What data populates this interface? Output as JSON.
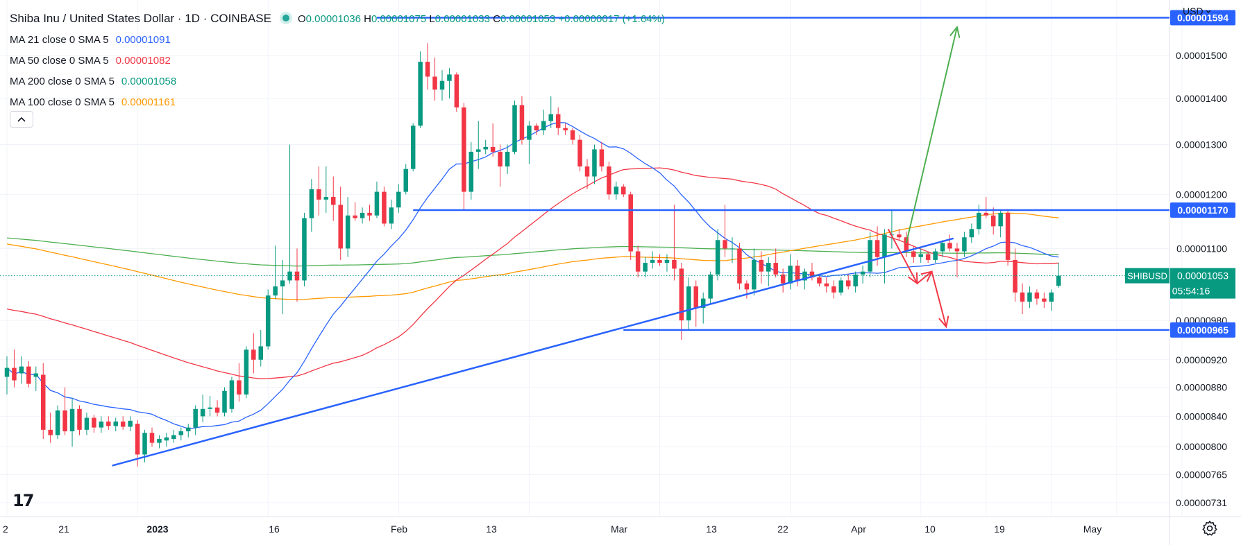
{
  "header": {
    "title": "Shiba Inu / United States Dollar · 1D · COINBASE",
    "ohlc": {
      "o_label": "O",
      "o": "0.00001036",
      "h_label": "H",
      "h": "0.00001075",
      "l_label": "L",
      "l": "0.00001033",
      "c_label": "C",
      "c": "0.00001053",
      "change": "+0.00000017 (+1.64%)"
    },
    "currency": "USD",
    "status_color": "#26a69a"
  },
  "indicators": [
    {
      "name": "MA 21 close 0 SMA 5",
      "value": "0.00001091",
      "color": "#2962ff"
    },
    {
      "name": "MA 50 close 0 SMA 5",
      "value": "0.00001082",
      "color": "#f23645"
    },
    {
      "name": "MA 200 close 0 SMA 5",
      "value": "0.00001058",
      "color": "#089981"
    },
    {
      "name": "MA 100 close 0 SMA 5",
      "value": "0.00001161",
      "color": "#ff9800"
    }
  ],
  "logo": "17",
  "icons": {
    "collapse": "chevron-up-icon",
    "settings": "gear-icon",
    "currency_menu": "chevron-down-icon"
  },
  "chart_data": {
    "type": "candlestick",
    "symbol": "SHIBUSD",
    "x_ticks": [
      "2",
      "21",
      "2023",
      "16",
      "Feb",
      "13",
      "Mar",
      "13",
      "22",
      "Apr",
      "10",
      "19",
      "May"
    ],
    "y_ticks": [
      1.5e-05,
      1.4e-05,
      1.3e-05,
      1.2e-05,
      1.1e-05,
      9.8e-06,
      9.2e-06,
      8.8e-06,
      8.4e-06,
      8e-06,
      7.65e-06,
      7.31e-06
    ],
    "y_tick_labels": [
      "0.00001500",
      "0.00001400",
      "0.00001300",
      "0.00001200",
      "0.00001100",
      "0.00000980",
      "0.00000920",
      "0.00000880",
      "0.00000840",
      "0.00000800",
      "0.00000765",
      "0.00000731"
    ],
    "ylim": [
      7.15e-06,
      1.64e-05
    ],
    "y_scale": "log",
    "current_price": {
      "symbol": "SHIBUSD",
      "value": "0.00001053",
      "countdown": "05:54:16",
      "color": "#089981"
    },
    "levels": [
      {
        "label": "0.00001594",
        "value": 1.594e-05
      },
      {
        "label": "0.00001170",
        "value": 1.17e-05
      },
      {
        "label": "0.00000965",
        "value": 9.65e-06
      }
    ],
    "colors": {
      "up": "#089981",
      "down": "#f23645",
      "level": "#2962ff",
      "ma21": "#2962ff",
      "ma50": "#f23645",
      "ma100": "#ff9800",
      "ma200": "#4caf50",
      "arrow_up": "#4caf50",
      "arrow_down": "#f23645"
    },
    "candles": [
      {
        "o": 8.95e-06,
        "h": 9.25e-06,
        "l": 8.7e-06,
        "c": 9.08e-06
      },
      {
        "o": 9.08e-06,
        "h": 9.35e-06,
        "l": 8.8e-06,
        "c": 8.9e-06
      },
      {
        "o": 9e-06,
        "h": 9.25e-06,
        "l": 8.85e-06,
        "c": 9.1e-06
      },
      {
        "o": 9.1e-06,
        "h": 9.18e-06,
        "l": 8.8e-06,
        "c": 8.85e-06
      },
      {
        "o": 8.95e-06,
        "h": 9.1e-06,
        "l": 8.75e-06,
        "c": 9e-06
      },
      {
        "o": 8.98e-06,
        "h": 9.15e-06,
        "l": 8.1e-06,
        "c": 8.22e-06
      },
      {
        "o": 8.22e-06,
        "h": 8.45e-06,
        "l": 8.05e-06,
        "c": 8.15e-06
      },
      {
        "o": 8.15e-06,
        "h": 8.55e-06,
        "l": 8.1e-06,
        "c": 8.48e-06
      },
      {
        "o": 8.48e-06,
        "h": 8.8e-06,
        "l": 8.15e-06,
        "c": 8.2e-06
      },
      {
        "o": 8.2e-06,
        "h": 8.65e-06,
        "l": 8e-06,
        "c": 8.5e-06
      },
      {
        "o": 8.5e-06,
        "h": 8.55e-06,
        "l": 8.15e-06,
        "c": 8.22e-06
      },
      {
        "o": 8.22e-06,
        "h": 8.45e-06,
        "l": 8.15e-06,
        "c": 8.38e-06
      },
      {
        "o": 8.38e-06,
        "h": 8.42e-06,
        "l": 8.18e-06,
        "c": 8.25e-06
      },
      {
        "o": 8.25e-06,
        "h": 8.4e-06,
        "l": 8.18e-06,
        "c": 8.33e-06
      },
      {
        "o": 8.33e-06,
        "h": 8.4e-06,
        "l": 8.22e-06,
        "c": 8.27e-06
      },
      {
        "o": 8.27e-06,
        "h": 8.38e-06,
        "l": 8.2e-06,
        "c": 8.33e-06
      },
      {
        "o": 8.33e-06,
        "h": 8.4e-06,
        "l": 8.22e-06,
        "c": 8.26e-06
      },
      {
        "o": 8.26e-06,
        "h": 8.4e-06,
        "l": 8.2e-06,
        "c": 8.34e-06
      },
      {
        "o": 8.3e-06,
        "h": 8.35e-06,
        "l": 7.75e-06,
        "c": 7.9e-06
      },
      {
        "o": 7.9e-06,
        "h": 8.22e-06,
        "l": 7.8e-06,
        "c": 8.18e-06
      },
      {
        "o": 8.18e-06,
        "h": 8.25e-06,
        "l": 8e-06,
        "c": 8.05e-06
      },
      {
        "o": 8.05e-06,
        "h": 8.15e-06,
        "l": 7.98e-06,
        "c": 8.1e-06
      },
      {
        "o": 8.08e-06,
        "h": 8.18e-06,
        "l": 8e-06,
        "c": 8.12e-06
      },
      {
        "o": 8.1e-06,
        "h": 8.22e-06,
        "l": 8.05e-06,
        "c": 8.15e-06
      },
      {
        "o": 8.15e-06,
        "h": 8.25e-06,
        "l": 8.08e-06,
        "c": 8.2e-06
      },
      {
        "o": 8.2e-06,
        "h": 8.3e-06,
        "l": 8.12e-06,
        "c": 8.25e-06
      },
      {
        "o": 8.25e-06,
        "h": 8.55e-06,
        "l": 8.15e-06,
        "c": 8.5e-06
      },
      {
        "o": 8.4e-06,
        "h": 8.7e-06,
        "l": 8.32e-06,
        "c": 8.5e-06
      },
      {
        "o": 8.5e-06,
        "h": 8.68e-06,
        "l": 8.4e-06,
        "c": 8.52e-06
      },
      {
        "o": 8.52e-06,
        "h": 8.62e-06,
        "l": 8.4e-06,
        "c": 8.45e-06
      },
      {
        "o": 8.45e-06,
        "h": 8.8e-06,
        "l": 8.4e-06,
        "c": 8.75e-06
      },
      {
        "o": 8.5e-06,
        "h": 8.95e-06,
        "l": 8.45e-06,
        "c": 8.9e-06
      },
      {
        "o": 8.9e-06,
        "h": 9.15e-06,
        "l": 8.6e-06,
        "c": 8.7e-06
      },
      {
        "o": 8.7e-06,
        "h": 9.4e-06,
        "l": 8.65e-06,
        "c": 9.35e-06
      },
      {
        "o": 9.35e-06,
        "h": 9.6e-06,
        "l": 9e-06,
        "c": 9.2e-06
      },
      {
        "o": 9.2e-06,
        "h": 9.65e-06,
        "l": 9.1e-06,
        "c": 9.4e-06
      },
      {
        "o": 9.4e-06,
        "h": 1.03e-05,
        "l": 9.35e-06,
        "c": 1.02e-05
      },
      {
        "o": 1.02e-05,
        "h": 1.105e-05,
        "l": 1.015e-05,
        "c": 1.035e-05
      },
      {
        "o": 1.035e-05,
        "h": 1.08e-05,
        "l": 9.9e-06,
        "c": 1.045e-05
      },
      {
        "o": 1.045e-05,
        "h": 1.3e-05,
        "l": 1.04e-05,
        "c": 1.06e-05
      },
      {
        "o": 1.06e-05,
        "h": 1.1e-05,
        "l": 1.01e-05,
        "c": 1.045e-05
      },
      {
        "o": 1.045e-05,
        "h": 1.165e-05,
        "l": 1.035e-05,
        "c": 1.155e-05
      },
      {
        "o": 1.155e-05,
        "h": 1.23e-05,
        "l": 1.13e-05,
        "c": 1.21e-05
      },
      {
        "o": 1.21e-05,
        "h": 1.255e-05,
        "l": 1.16e-05,
        "c": 1.19e-05
      },
      {
        "o": 1.19e-05,
        "h": 1.255e-05,
        "l": 1.165e-05,
        "c": 1.195e-05
      },
      {
        "o": 1.195e-05,
        "h": 1.235e-05,
        "l": 1.15e-05,
        "c": 1.18e-05
      },
      {
        "o": 1.18e-05,
        "h": 1.215e-05,
        "l": 1.08e-05,
        "c": 1.1e-05
      },
      {
        "o": 1.1e-05,
        "h": 1.195e-05,
        "l": 1.085e-05,
        "c": 1.16e-05
      },
      {
        "o": 1.16e-05,
        "h": 1.185e-05,
        "l": 1.15e-05,
        "c": 1.155e-05
      },
      {
        "o": 1.155e-05,
        "h": 1.175e-05,
        "l": 1.145e-05,
        "c": 1.165e-05
      },
      {
        "o": 1.165e-05,
        "h": 1.18e-05,
        "l": 1.15e-05,
        "c": 1.16e-05
      },
      {
        "o": 1.16e-05,
        "h": 1.225e-05,
        "l": 1.155e-05,
        "c": 1.205e-05
      },
      {
        "o": 1.205e-05,
        "h": 1.215e-05,
        "l": 1.14e-05,
        "c": 1.145e-05
      },
      {
        "o": 1.145e-05,
        "h": 1.19e-05,
        "l": 1.135e-05,
        "c": 1.175e-05
      },
      {
        "o": 1.175e-05,
        "h": 1.22e-05,
        "l": 1.165e-05,
        "c": 1.205e-05
      },
      {
        "o": 1.205e-05,
        "h": 1.26e-05,
        "l": 1.2e-05,
        "c": 1.25e-05
      },
      {
        "o": 1.25e-05,
        "h": 1.345e-05,
        "l": 1.245e-05,
        "c": 1.34e-05
      },
      {
        "o": 1.34e-05,
        "h": 1.51e-05,
        "l": 1.335e-05,
        "c": 1.485e-05
      },
      {
        "o": 1.485e-05,
        "h": 1.53e-05,
        "l": 1.42e-05,
        "c": 1.45e-05
      },
      {
        "o": 1.45e-05,
        "h": 1.495e-05,
        "l": 1.395e-05,
        "c": 1.42e-05
      },
      {
        "o": 1.42e-05,
        "h": 1.465e-05,
        "l": 1.395e-05,
        "c": 1.44e-05
      },
      {
        "o": 1.44e-05,
        "h": 1.47e-05,
        "l": 1.4e-05,
        "c": 1.455e-05
      },
      {
        "o": 1.455e-05,
        "h": 1.46e-05,
        "l": 1.37e-05,
        "c": 1.38e-05
      },
      {
        "o": 1.38e-05,
        "h": 1.39e-05,
        "l": 1.17e-05,
        "c": 1.205e-05
      },
      {
        "o": 1.205e-05,
        "h": 1.305e-05,
        "l": 1.19e-05,
        "c": 1.285e-05
      },
      {
        "o": 1.285e-05,
        "h": 1.35e-05,
        "l": 1.25e-05,
        "c": 1.29e-05
      },
      {
        "o": 1.29e-05,
        "h": 1.31e-05,
        "l": 1.28e-05,
        "c": 1.295e-05
      },
      {
        "o": 1.295e-05,
        "h": 1.345e-05,
        "l": 1.275e-05,
        "c": 1.285e-05
      },
      {
        "o": 1.285e-05,
        "h": 1.3e-05,
        "l": 1.215e-05,
        "c": 1.255e-05
      },
      {
        "o": 1.255e-05,
        "h": 1.3e-05,
        "l": 1.24e-05,
        "c": 1.285e-05
      },
      {
        "o": 1.285e-05,
        "h": 1.395e-05,
        "l": 1.28e-05,
        "c": 1.385e-05
      },
      {
        "o": 1.385e-05,
        "h": 1.405e-05,
        "l": 1.3e-05,
        "c": 1.31e-05
      },
      {
        "o": 1.31e-05,
        "h": 1.35e-05,
        "l": 1.26e-05,
        "c": 1.34e-05
      },
      {
        "o": 1.34e-05,
        "h": 1.345e-05,
        "l": 1.32e-05,
        "c": 1.33e-05
      },
      {
        "o": 1.33e-05,
        "h": 1.375e-05,
        "l": 1.32e-05,
        "c": 1.35e-05
      },
      {
        "o": 1.35e-05,
        "h": 1.405e-05,
        "l": 1.335e-05,
        "c": 1.365e-05
      },
      {
        "o": 1.365e-05,
        "h": 1.38e-05,
        "l": 1.32e-05,
        "c": 1.335e-05
      },
      {
        "o": 1.335e-05,
        "h": 1.345e-05,
        "l": 1.32e-05,
        "c": 1.33e-05
      },
      {
        "o": 1.33e-05,
        "h": 1.335e-05,
        "l": 1.3e-05,
        "c": 1.31e-05
      },
      {
        "o": 1.31e-05,
        "h": 1.32e-05,
        "l": 1.245e-05,
        "c": 1.255e-05
      },
      {
        "o": 1.255e-05,
        "h": 1.27e-05,
        "l": 1.21e-05,
        "c": 1.235e-05
      },
      {
        "o": 1.235e-05,
        "h": 1.3e-05,
        "l": 1.22e-05,
        "c": 1.29e-05
      },
      {
        "o": 1.29e-05,
        "h": 1.305e-05,
        "l": 1.245e-05,
        "c": 1.255e-05
      },
      {
        "o": 1.255e-05,
        "h": 1.265e-05,
        "l": 1.19e-05,
        "c": 1.2e-05
      },
      {
        "o": 1.2e-05,
        "h": 1.225e-05,
        "l": 1.19e-05,
        "c": 1.215e-05
      },
      {
        "o": 1.215e-05,
        "h": 1.22e-05,
        "l": 1.195e-05,
        "c": 1.2e-05
      },
      {
        "o": 1.2e-05,
        "h": 1.205e-05,
        "l": 1.08e-05,
        "c": 1.095e-05
      },
      {
        "o": 1.095e-05,
        "h": 1.105e-05,
        "l": 1.05e-05,
        "c": 1.06e-05
      },
      {
        "o": 1.06e-05,
        "h": 1.085e-05,
        "l": 1.05e-05,
        "c": 1.075e-05
      },
      {
        "o": 1.075e-05,
        "h": 1.095e-05,
        "l": 1.065e-05,
        "c": 1.08e-05
      },
      {
        "o": 1.08e-05,
        "h": 1.09e-05,
        "l": 1.07e-05,
        "c": 1.075e-05
      },
      {
        "o": 1.075e-05,
        "h": 1.09e-05,
        "l": 1.06e-05,
        "c": 1.08e-05
      },
      {
        "o": 1.08e-05,
        "h": 1.18e-05,
        "l": 1.045e-05,
        "c": 1.065e-05
      },
      {
        "o": 1.065e-05,
        "h": 1.075e-05,
        "l": 9.5e-06,
        "c": 9.8e-06
      },
      {
        "o": 9.8e-06,
        "h": 1.05e-05,
        "l": 9.65e-06,
        "c": 1.035e-05
      },
      {
        "o": 1.035e-05,
        "h": 1.045e-05,
        "l": 9.7e-06,
        "c": 1e-05
      },
      {
        "o": 1e-05,
        "h": 1.025e-05,
        "l": 9.75e-06,
        "c": 1.015e-05
      },
      {
        "o": 1.015e-05,
        "h": 1.06e-05,
        "l": 1.005e-05,
        "c": 1.055e-05
      },
      {
        "o": 1.055e-05,
        "h": 1.135e-05,
        "l": 1.045e-05,
        "c": 1.115e-05
      },
      {
        "o": 1.115e-05,
        "h": 1.18e-05,
        "l": 1.085e-05,
        "c": 1.1e-05
      },
      {
        "o": 1.1e-05,
        "h": 1.12e-05,
        "l": 1.075e-05,
        "c": 1.1e-05
      },
      {
        "o": 1.1e-05,
        "h": 1.11e-05,
        "l": 1.03e-05,
        "c": 1.04e-05
      },
      {
        "o": 1.04e-05,
        "h": 1.045e-05,
        "l": 1.015e-05,
        "c": 1.03e-05
      },
      {
        "o": 1.03e-05,
        "h": 1.1e-05,
        "l": 1.02e-05,
        "c": 1.08e-05
      },
      {
        "o": 1.08e-05,
        "h": 1.095e-05,
        "l": 1.04e-05,
        "c": 1.06e-05
      },
      {
        "o": 1.06e-05,
        "h": 1.085e-05,
        "l": 1.035e-05,
        "c": 1.075e-05
      },
      {
        "o": 1.075e-05,
        "h": 1.1e-05,
        "l": 1.05e-05,
        "c": 1.055e-05
      },
      {
        "o": 1.055e-05,
        "h": 1.065e-05,
        "l": 1.025e-05,
        "c": 1.04e-05
      },
      {
        "o": 1.04e-05,
        "h": 1.09e-05,
        "l": 1.03e-05,
        "c": 1.07e-05
      },
      {
        "o": 1.07e-05,
        "h": 1.08e-05,
        "l": 1.035e-05,
        "c": 1.045e-05
      },
      {
        "o": 1.045e-05,
        "h": 1.065e-05,
        "l": 1.03e-05,
        "c": 1.06e-05
      },
      {
        "o": 1.06e-05,
        "h": 1.075e-05,
        "l": 1.045e-05,
        "c": 1.05e-05
      },
      {
        "o": 1.05e-05,
        "h": 1.055e-05,
        "l": 1.035e-05,
        "c": 1.04e-05
      },
      {
        "o": 1.04e-05,
        "h": 1.05e-05,
        "l": 1.025e-05,
        "c": 1.035e-05
      },
      {
        "o": 1.035e-05,
        "h": 1.045e-05,
        "l": 1.015e-05,
        "c": 1.025e-05
      },
      {
        "o": 1.025e-05,
        "h": 1.05e-05,
        "l": 1.02e-05,
        "c": 1.045e-05
      },
      {
        "o": 1.045e-05,
        "h": 1.055e-05,
        "l": 1.03e-05,
        "c": 1.035e-05
      },
      {
        "o": 1.035e-05,
        "h": 1.06e-05,
        "l": 1.025e-05,
        "c": 1.055e-05
      },
      {
        "o": 1.055e-05,
        "h": 1.07e-05,
        "l": 1.04e-05,
        "c": 1.06e-05
      },
      {
        "o": 1.06e-05,
        "h": 1.13e-05,
        "l": 1.05e-05,
        "c": 1.115e-05
      },
      {
        "o": 1.115e-05,
        "h": 1.14e-05,
        "l": 1.07e-05,
        "c": 1.085e-05
      },
      {
        "o": 1.085e-05,
        "h": 1.135e-05,
        "l": 1.04e-05,
        "c": 1.125e-05
      },
      {
        "o": 1.125e-05,
        "h": 1.17e-05,
        "l": 1.1e-05,
        "c": 1.125e-05
      },
      {
        "o": 1.125e-05,
        "h": 1.135e-05,
        "l": 1.115e-05,
        "c": 1.12e-05
      },
      {
        "o": 1.12e-05,
        "h": 1.13e-05,
        "l": 1.085e-05,
        "c": 1.095e-05
      },
      {
        "o": 1.095e-05,
        "h": 1.105e-05,
        "l": 1.075e-05,
        "c": 1.085e-05
      },
      {
        "o": 1.085e-05,
        "h": 1.1e-05,
        "l": 1.075e-05,
        "c": 1.09e-05
      },
      {
        "o": 1.09e-05,
        "h": 1.095e-05,
        "l": 1.075e-05,
        "c": 1.08e-05
      },
      {
        "o": 1.08e-05,
        "h": 1.1e-05,
        "l": 1.075e-05,
        "c": 1.095e-05
      },
      {
        "o": 1.095e-05,
        "h": 1.115e-05,
        "l": 1.085e-05,
        "c": 1.11e-05
      },
      {
        "o": 1.11e-05,
        "h": 1.125e-05,
        "l": 1.095e-05,
        "c": 1.1e-05
      },
      {
        "o": 1.1e-05,
        "h": 1.11e-05,
        "l": 1.05e-05,
        "c": 1.095e-05
      },
      {
        "o": 1.095e-05,
        "h": 1.13e-05,
        "l": 1.085e-05,
        "c": 1.12e-05
      },
      {
        "o": 1.12e-05,
        "h": 1.145e-05,
        "l": 1.11e-05,
        "c": 1.135e-05
      },
      {
        "o": 1.135e-05,
        "h": 1.18e-05,
        "l": 1.125e-05,
        "c": 1.165e-05
      },
      {
        "o": 1.165e-05,
        "h": 1.195e-05,
        "l": 1.155e-05,
        "c": 1.16e-05
      },
      {
        "o": 1.16e-05,
        "h": 1.175e-05,
        "l": 1.125e-05,
        "c": 1.14e-05
      },
      {
        "o": 1.14e-05,
        "h": 1.17e-05,
        "l": 1.12e-05,
        "c": 1.165e-05
      },
      {
        "o": 1.165e-05,
        "h": 1.17e-05,
        "l": 1.07e-05,
        "c": 1.08e-05
      },
      {
        "o": 1.08e-05,
        "h": 1.1e-05,
        "l": 1.01e-05,
        "c": 1.025e-05
      },
      {
        "o": 1.025e-05,
        "h": 1.04e-05,
        "l": 9.9e-06,
        "c": 1.01e-05
      },
      {
        "o": 1.01e-05,
        "h": 1.035e-05,
        "l": 1e-05,
        "c": 1.025e-05
      },
      {
        "o": 1.025e-05,
        "h": 1.03e-05,
        "l": 1.005e-05,
        "c": 1.015e-05
      },
      {
        "o": 1.015e-05,
        "h": 1.025e-05,
        "l": 1e-05,
        "c": 1.01e-05
      },
      {
        "o": 1.01e-05,
        "h": 1.03e-05,
        "l": 9.95e-06,
        "c": 1.025e-05
      },
      {
        "o": 1.036e-05,
        "h": 1.075e-05,
        "l": 1.033e-05,
        "c": 1.053e-05
      }
    ]
  }
}
